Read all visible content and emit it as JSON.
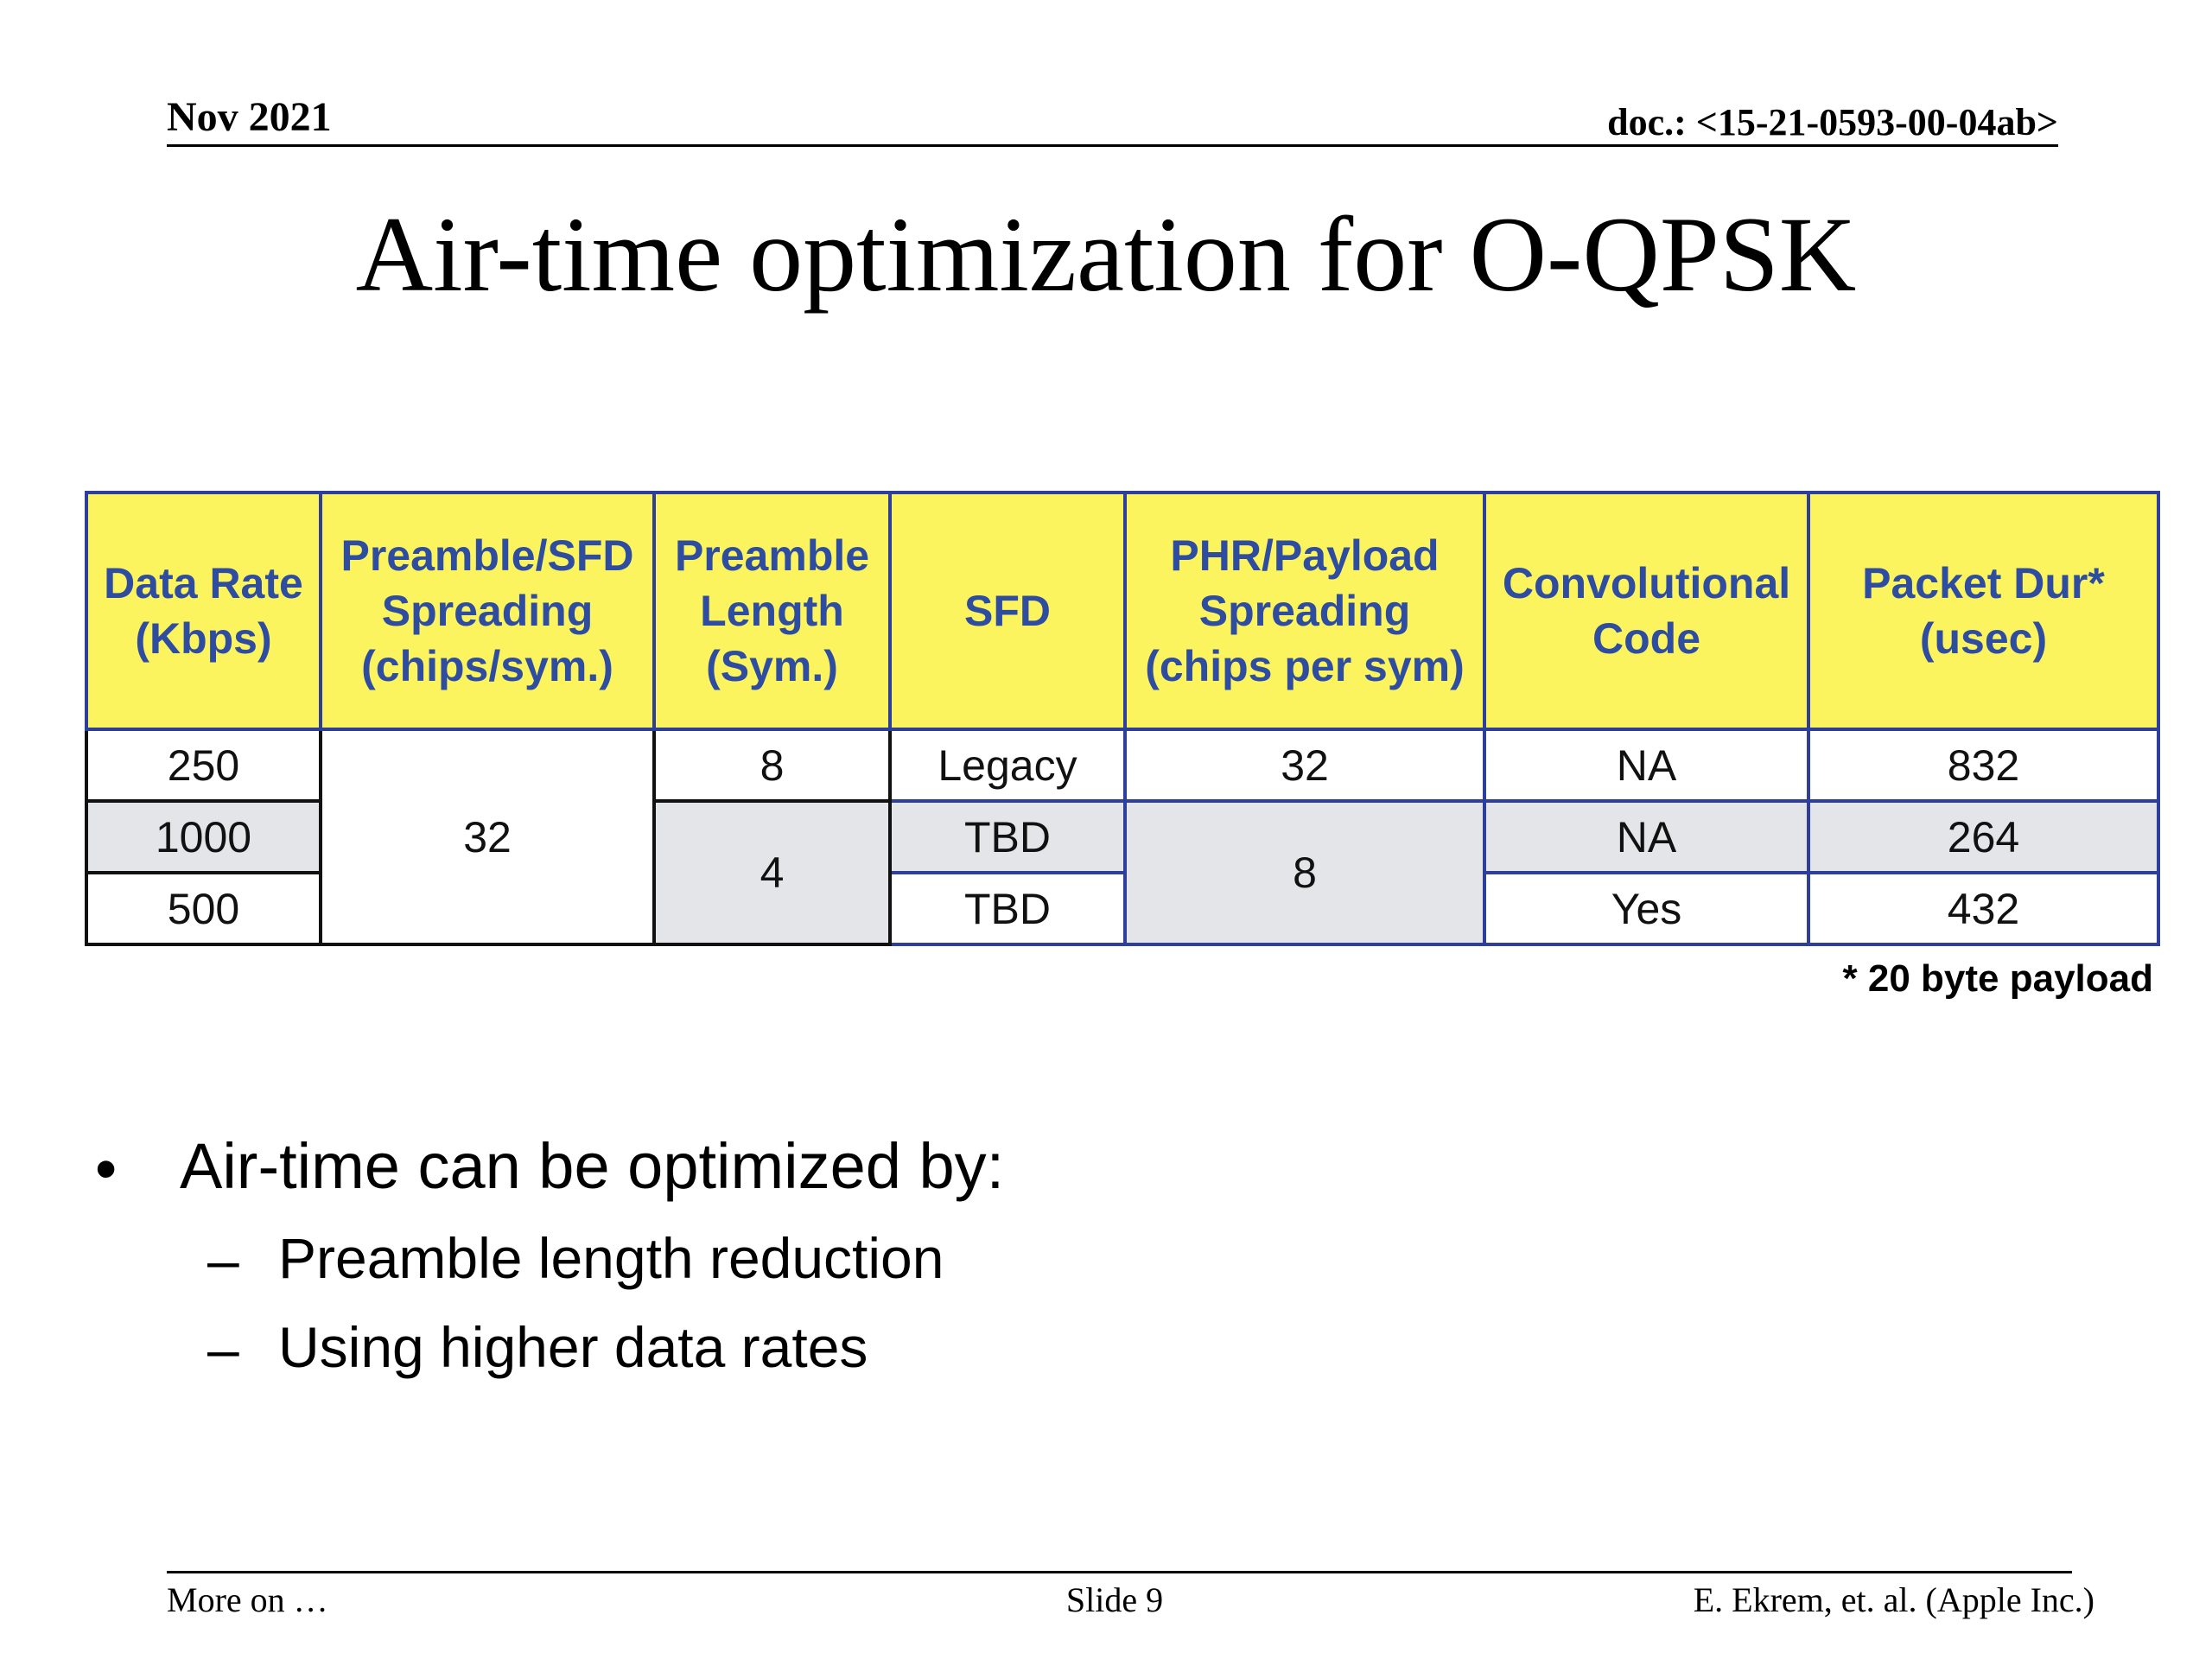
{
  "header": {
    "date": "Nov 2021",
    "doc": "doc.: <15-21-0593-00-04ab>"
  },
  "title": "Air-time optimization for O-QPSK",
  "table": {
    "headers": [
      [
        "Data Rate",
        "(Kbps)"
      ],
      [
        "Preamble/SFD",
        "Spreading",
        "(chips/sym.)"
      ],
      [
        "Preamble",
        "Length",
        "(Sym.)"
      ],
      [
        "SFD"
      ],
      [
        "PHR/Payload",
        "Spreading",
        "(chips per sym)"
      ],
      [
        "Convolutional",
        "Code"
      ],
      [
        "Packet Dur*",
        "(usec)"
      ]
    ],
    "rows": [
      {
        "data_rate": "250",
        "preamble_sfd_spreading": "32",
        "preamble_length": "8",
        "sfd": "Legacy",
        "phr_payload_spreading": "32",
        "convolutional_code": "NA",
        "packet_dur": "832"
      },
      {
        "data_rate": "1000",
        "preamble_sfd_spreading": "32",
        "preamble_length": "4",
        "sfd": "TBD",
        "phr_payload_spreading": "8",
        "convolutional_code": "NA",
        "packet_dur": "264"
      },
      {
        "data_rate": "500",
        "preamble_sfd_spreading": "32",
        "preamble_length": "4",
        "sfd": "TBD",
        "phr_payload_spreading": "8",
        "convolutional_code": "Yes",
        "packet_dur": "432"
      }
    ],
    "note": "* 20 byte payload"
  },
  "bullets": {
    "main": "Air-time can be optimized by:",
    "main_mark": "•",
    "sub_mark": "–",
    "subs": [
      "Preamble length reduction",
      "Using higher data rates"
    ]
  },
  "footer": {
    "left": "More on …",
    "center": "Slide 9",
    "right": "E. Ekrem, et. al. (Apple Inc.)"
  }
}
